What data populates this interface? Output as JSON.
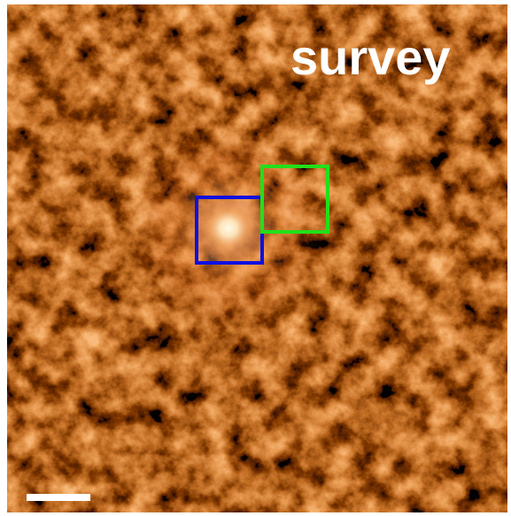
{
  "label": "survey"
}
